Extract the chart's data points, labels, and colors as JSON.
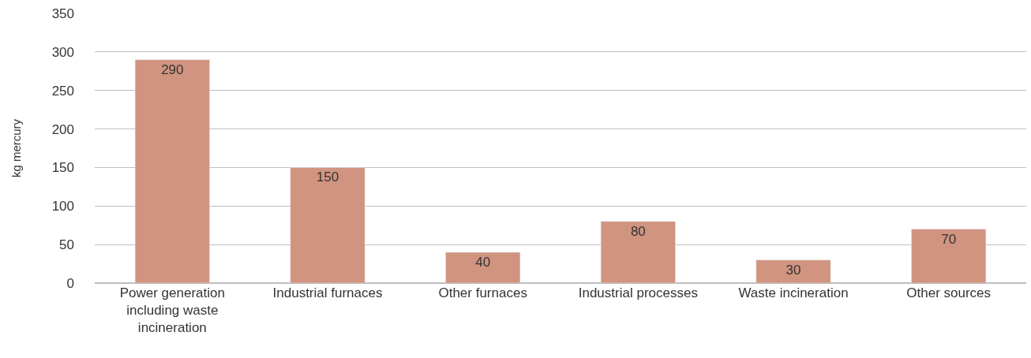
{
  "chart_data": {
    "type": "bar",
    "ylabel": "kg mercury",
    "categories": [
      "Power generation including waste incineration",
      "Industrial furnaces",
      "Other furnaces",
      "Industrial processes",
      "Waste incineration",
      "Other sources"
    ],
    "values": [
      290,
      150,
      40,
      80,
      30,
      70
    ],
    "color": "#d09480",
    "ylim": [
      0,
      350
    ],
    "yticks": [
      0,
      50,
      100,
      150,
      200,
      250,
      300,
      350
    ],
    "grid": "y",
    "data_labels": true,
    "legend": false
  }
}
